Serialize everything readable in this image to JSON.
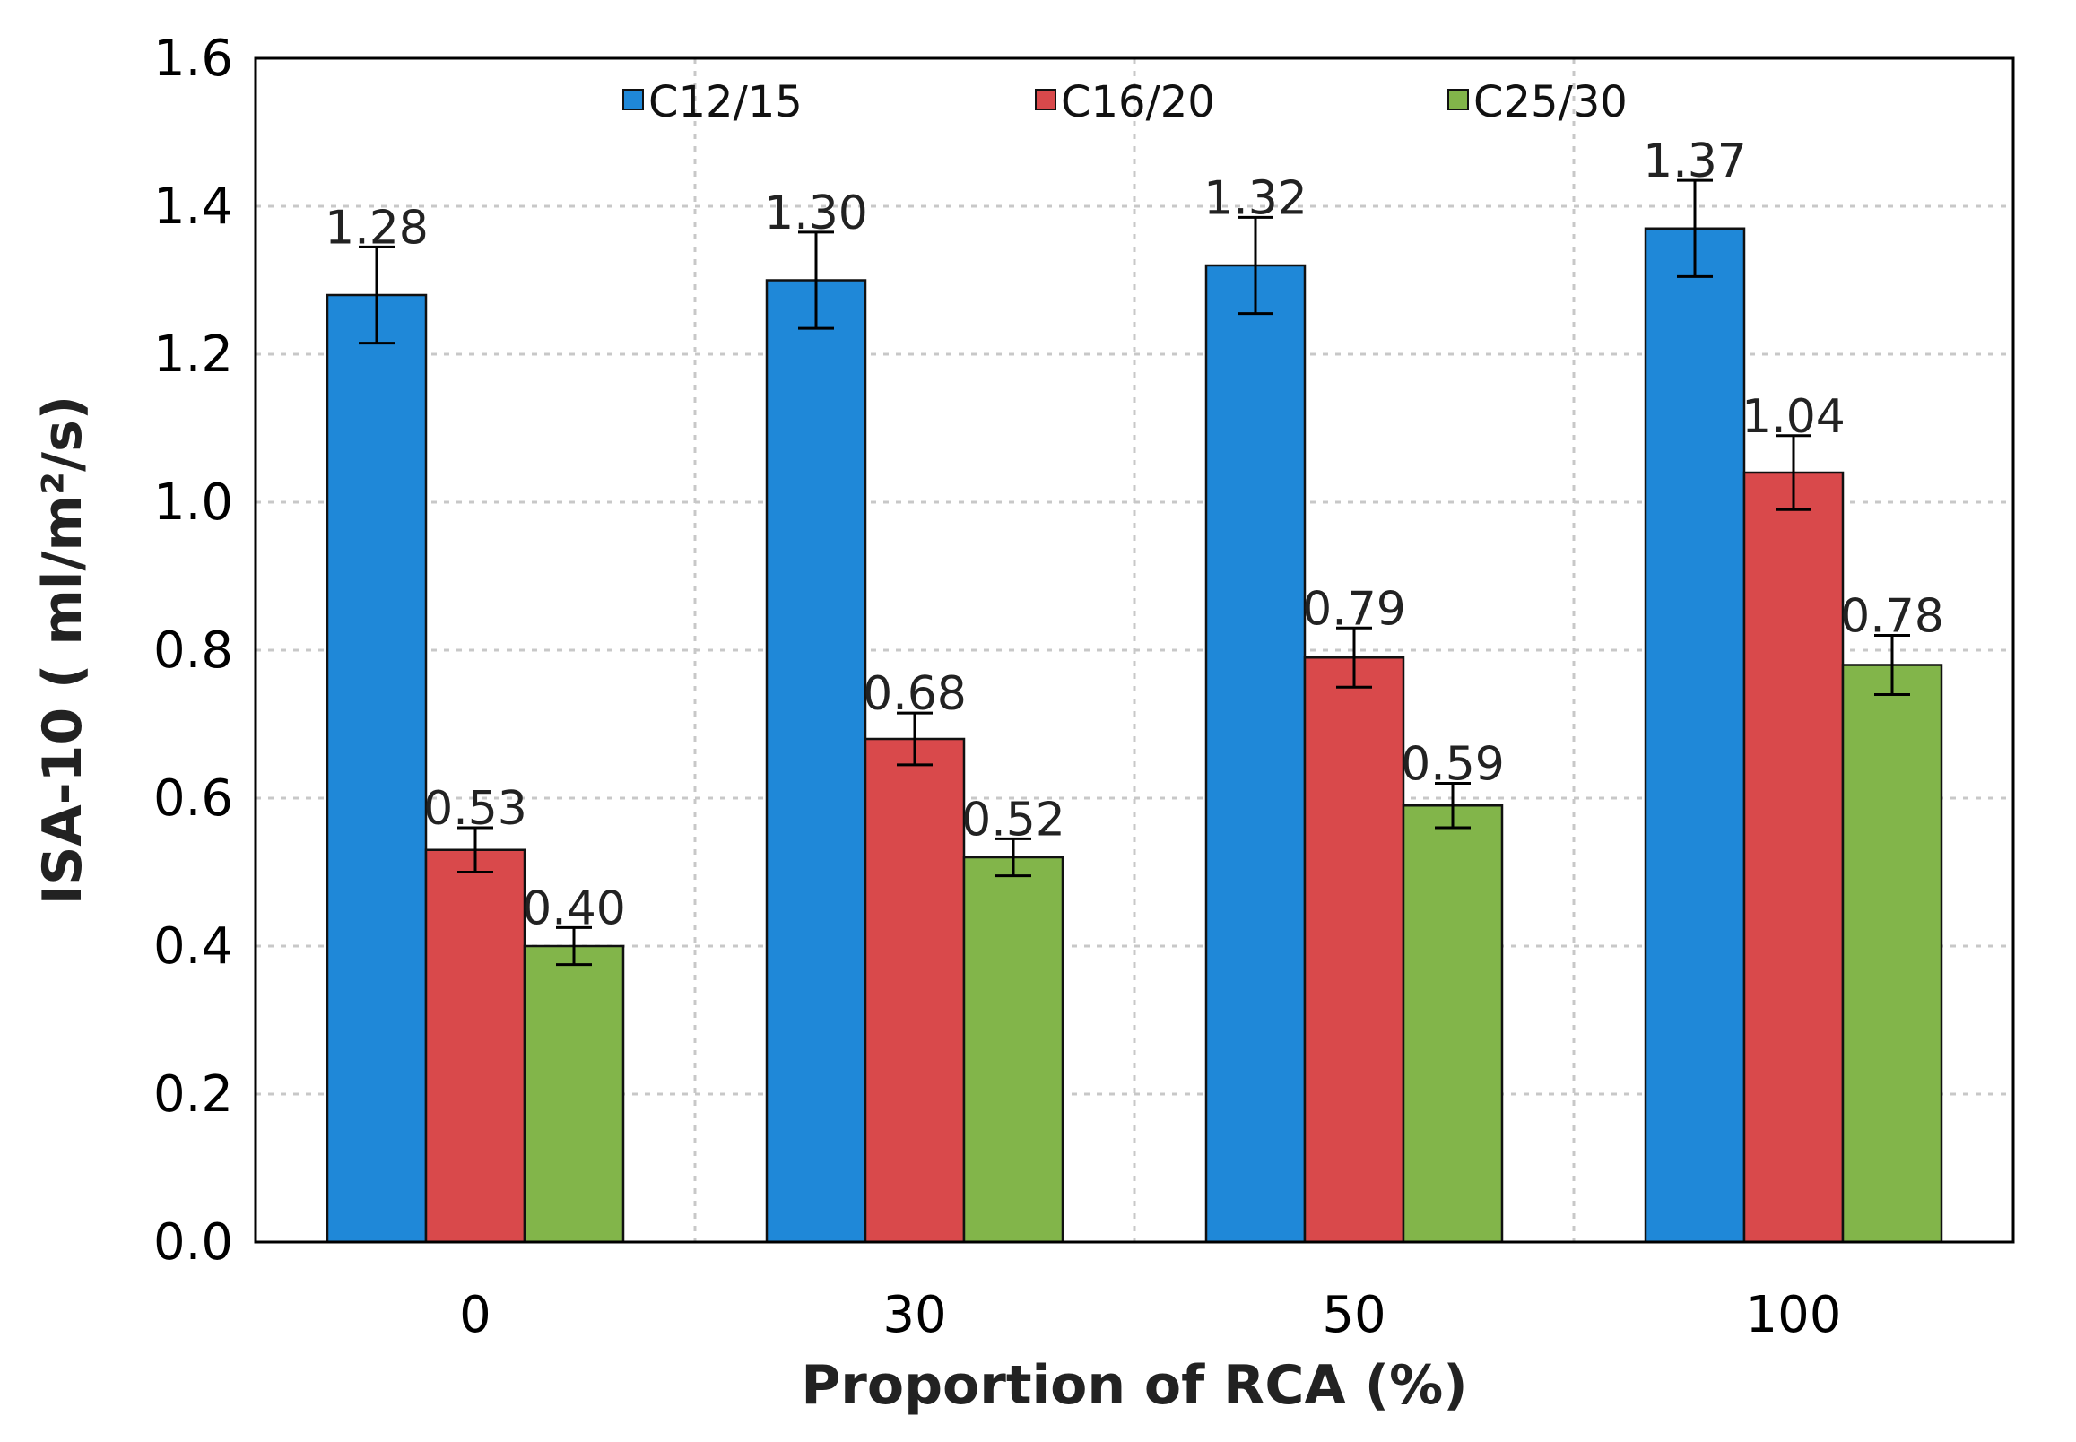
{
  "chart_data": {
    "type": "bar",
    "title": "",
    "xlabel": "Proportion of RCA (%)",
    "ylabel": "ISA-10 ( ml/m²/s)",
    "categories": [
      "0",
      "30",
      "50",
      "100"
    ],
    "ylim": [
      0.0,
      1.6
    ],
    "yticks": [
      "0.0",
      "0.2",
      "0.4",
      "0.6",
      "0.8",
      "1.0",
      "1.2",
      "1.4",
      "1.6"
    ],
    "grid": true,
    "legend_position": "top-center",
    "series": [
      {
        "name": "C12/15",
        "color": "#1f88d8",
        "values": [
          1.28,
          1.3,
          1.32,
          1.37
        ],
        "labels": [
          "1.28",
          "1.30",
          "1.32",
          "1.37"
        ],
        "errors": [
          0.065,
          0.065,
          0.065,
          0.065
        ]
      },
      {
        "name": "C16/20",
        "color": "#d9494b",
        "values": [
          0.53,
          0.68,
          0.79,
          1.04
        ],
        "labels": [
          "0.53",
          "0.68",
          "0.79",
          "1.04"
        ],
        "errors": [
          0.03,
          0.035,
          0.04,
          0.05
        ]
      },
      {
        "name": "C25/30",
        "color": "#82b54a",
        "values": [
          0.4,
          0.52,
          0.59,
          0.78
        ],
        "labels": [
          "0.40",
          "0.52",
          "0.59",
          "0.78"
        ],
        "errors": [
          0.025,
          0.025,
          0.03,
          0.04
        ]
      }
    ]
  }
}
